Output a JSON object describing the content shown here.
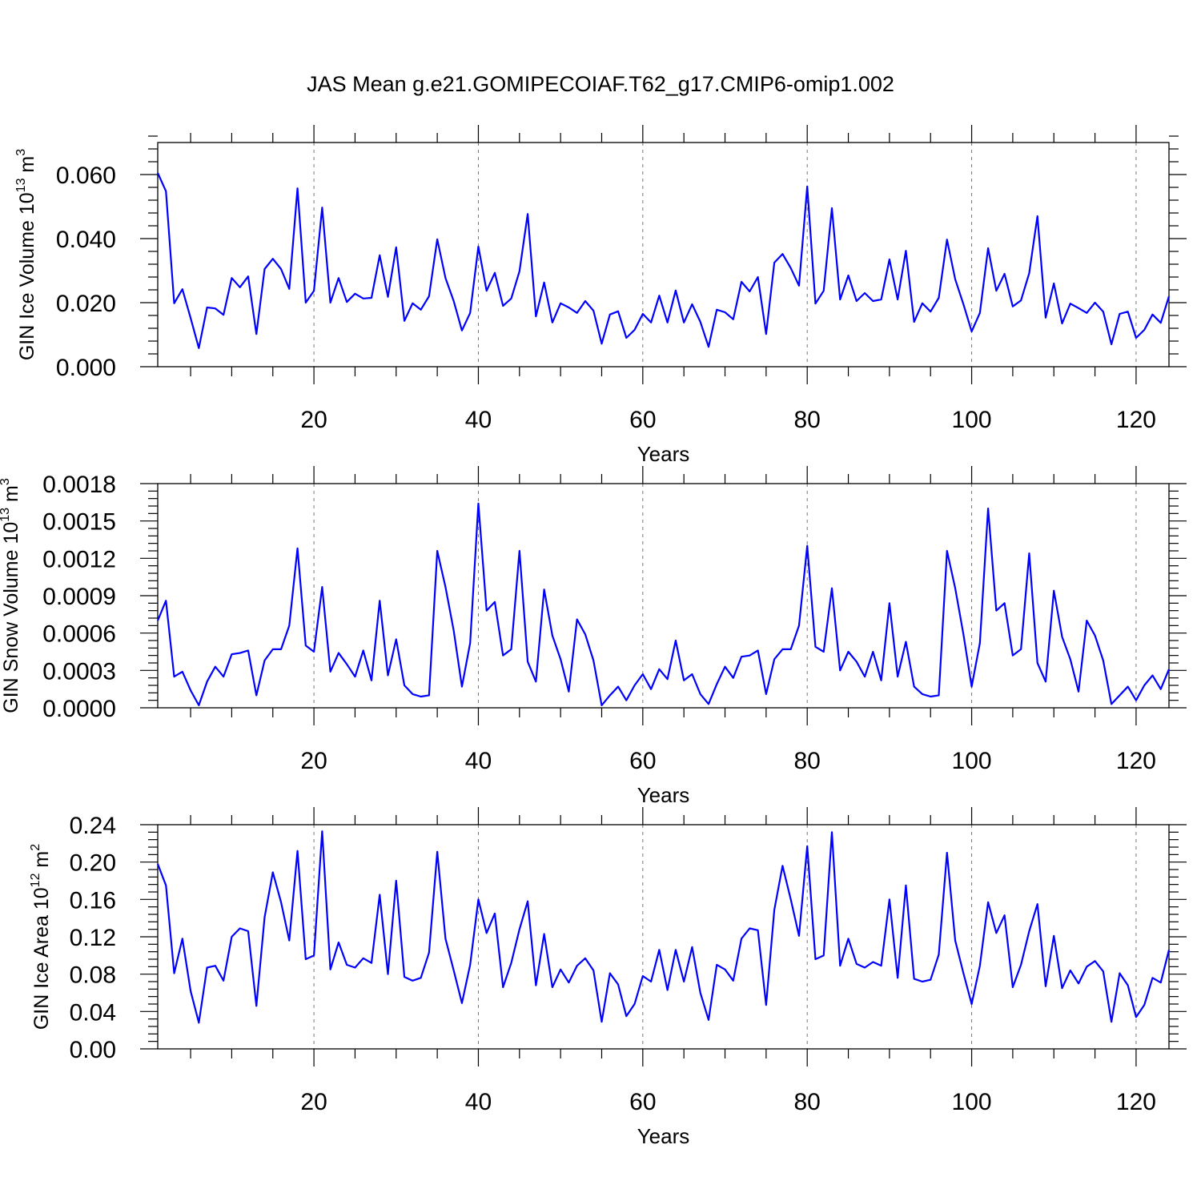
{
  "title": "JAS Mean g.e21.GOMIPECOIAF.T62_g17.CMIP6-omip1.002",
  "chart_data": [
    {
      "type": "line",
      "id": "ice-volume",
      "ylabel": {
        "main": "GIN Ice Volume 10",
        "sup": "13",
        "unit": " m",
        "unit_sup": "3"
      },
      "xlabel": "Years",
      "xlim": [
        1,
        124
      ],
      "ylim": [
        0,
        0.07
      ],
      "xticks": [
        20,
        40,
        60,
        80,
        100,
        120
      ],
      "xtick_labels": [
        "20",
        "40",
        "60",
        "80",
        "100",
        "120"
      ],
      "yticks": [
        0,
        0.02,
        0.04,
        0.06
      ],
      "ytick_labels": [
        "0.000",
        "0.020",
        "0.040",
        "0.060"
      ],
      "series_color": "#0000ff",
      "values": [
        0.0605,
        0.0548,
        0.0198,
        0.0242,
        0.0152,
        0.0058,
        0.0185,
        0.0182,
        0.0162,
        0.0277,
        0.0248,
        0.0282,
        0.0102,
        0.0305,
        0.0337,
        0.0305,
        0.0243,
        0.0557,
        0.02,
        0.0237,
        0.0497,
        0.02,
        0.0277,
        0.0202,
        0.0228,
        0.0213,
        0.0215,
        0.0348,
        0.0218,
        0.0373,
        0.0143,
        0.0198,
        0.0178,
        0.022,
        0.0398,
        0.0277,
        0.0205,
        0.0113,
        0.0168,
        0.0375,
        0.0237,
        0.0293,
        0.019,
        0.0213,
        0.0298,
        0.0477,
        0.0157,
        0.0263,
        0.0138,
        0.0198,
        0.0185,
        0.0168,
        0.0205,
        0.0175,
        0.0072,
        0.0163,
        0.0173,
        0.009,
        0.0115,
        0.0165,
        0.0138,
        0.0222,
        0.0138,
        0.0238,
        0.0138,
        0.0195,
        0.014,
        0.0062,
        0.0178,
        0.017,
        0.0148,
        0.0265,
        0.0235,
        0.028,
        0.0102,
        0.0325,
        0.0352,
        0.0308,
        0.0253,
        0.0563,
        0.0197,
        0.0237,
        0.0495,
        0.021,
        0.0285,
        0.0205,
        0.023,
        0.0205,
        0.021,
        0.0335,
        0.021,
        0.0362,
        0.014,
        0.0198,
        0.0172,
        0.0215,
        0.0397,
        0.0273,
        0.0195,
        0.011,
        0.0168,
        0.037,
        0.0237,
        0.029,
        0.0188,
        0.0207,
        0.0292,
        0.047,
        0.0153,
        0.026,
        0.0135,
        0.0197,
        0.0183,
        0.0168,
        0.02,
        0.0172,
        0.007,
        0.0165,
        0.0172,
        0.009,
        0.0115,
        0.0163,
        0.0137,
        0.022
      ]
    },
    {
      "type": "line",
      "id": "snow-volume",
      "ylabel": {
        "main": "GIN Snow Volume 10",
        "sup": "13",
        "unit": " m",
        "unit_sup": "3"
      },
      "xlabel": "Years",
      "xlim": [
        1,
        124
      ],
      "ylim": [
        0,
        0.0018
      ],
      "xticks": [
        20,
        40,
        60,
        80,
        100,
        120
      ],
      "xtick_labels": [
        "20",
        "40",
        "60",
        "80",
        "100",
        "120"
      ],
      "yticks": [
        0,
        0.0003,
        0.0006,
        0.0009,
        0.0012,
        0.0015,
        0.0018
      ],
      "ytick_labels": [
        "0.0000",
        "0.0003",
        "0.0006",
        "0.0009",
        "0.0012",
        "0.0015",
        "0.0018"
      ],
      "series_color": "#0000ff",
      "values": [
        0.0007,
        0.00086,
        0.00025,
        0.00029,
        0.00014,
        2e-05,
        0.00021,
        0.00033,
        0.00025,
        0.00043,
        0.00044,
        0.00046,
        0.0001,
        0.00038,
        0.00047,
        0.00047,
        0.00066,
        0.00128,
        0.0005,
        0.00045,
        0.00097,
        0.00029,
        0.00044,
        0.00035,
        0.00025,
        0.00046,
        0.00022,
        0.00086,
        0.00026,
        0.00055,
        0.00018,
        0.00011,
        9e-05,
        0.0001,
        0.00126,
        0.00097,
        0.00062,
        0.00017,
        0.00052,
        0.00164,
        0.00078,
        0.00085,
        0.00042,
        0.00047,
        0.00126,
        0.00037,
        0.00021,
        0.00095,
        0.00058,
        0.00039,
        0.00013,
        0.00071,
        0.00059,
        0.00038,
        2e-05,
        0.0001,
        0.00017,
        6e-05,
        0.00018,
        0.00027,
        0.00015,
        0.00031,
        0.00023,
        0.00054,
        0.00022,
        0.00027,
        0.00011,
        3e-05,
        0.00019,
        0.00033,
        0.00024,
        0.00041,
        0.00042,
        0.00046,
        0.00011,
        0.00039,
        0.00047,
        0.00047,
        0.00066,
        0.0013,
        0.00049,
        0.00045,
        0.00096,
        0.0003,
        0.00045,
        0.00037,
        0.00025,
        0.00045,
        0.00022,
        0.00084,
        0.00025,
        0.00053,
        0.00017,
        0.00011,
        9e-05,
        0.0001,
        0.00126,
        0.00096,
        0.00059,
        0.00017,
        0.00052,
        0.0016,
        0.00078,
        0.00084,
        0.00042,
        0.00047,
        0.00124,
        0.00036,
        0.00021,
        0.00094,
        0.00057,
        0.00039,
        0.00013,
        0.0007,
        0.00058,
        0.00038,
        3e-05,
        0.0001,
        0.00017,
        6e-05,
        0.00018,
        0.00026,
        0.00015,
        0.00031
      ]
    },
    {
      "type": "line",
      "id": "ice-area",
      "ylabel": {
        "main": "GIN Ice Area 10",
        "sup": "12",
        "unit": " m",
        "unit_sup": "2"
      },
      "xlabel": "Years",
      "xlim": [
        1,
        124
      ],
      "ylim": [
        0,
        0.24
      ],
      "xticks": [
        20,
        40,
        60,
        80,
        100,
        120
      ],
      "xtick_labels": [
        "20",
        "40",
        "60",
        "80",
        "100",
        "120"
      ],
      "yticks": [
        0,
        0.04,
        0.08,
        0.12,
        0.16,
        0.2,
        0.24
      ],
      "ytick_labels": [
        "0.00",
        "0.04",
        "0.08",
        "0.12",
        "0.16",
        "0.20",
        "0.24"
      ],
      "series_color": "#0000ff",
      "values": [
        0.198,
        0.175,
        0.081,
        0.118,
        0.062,
        0.028,
        0.087,
        0.089,
        0.073,
        0.12,
        0.129,
        0.126,
        0.046,
        0.141,
        0.189,
        0.157,
        0.116,
        0.212,
        0.096,
        0.1,
        0.233,
        0.085,
        0.114,
        0.09,
        0.087,
        0.097,
        0.092,
        0.165,
        0.08,
        0.18,
        0.077,
        0.073,
        0.076,
        0.103,
        0.211,
        0.118,
        0.084,
        0.049,
        0.09,
        0.16,
        0.124,
        0.145,
        0.066,
        0.092,
        0.128,
        0.158,
        0.068,
        0.123,
        0.066,
        0.085,
        0.071,
        0.089,
        0.097,
        0.084,
        0.029,
        0.081,
        0.069,
        0.035,
        0.048,
        0.078,
        0.072,
        0.106,
        0.063,
        0.106,
        0.072,
        0.109,
        0.06,
        0.031,
        0.09,
        0.085,
        0.073,
        0.118,
        0.129,
        0.127,
        0.047,
        0.149,
        0.196,
        0.16,
        0.121,
        0.217,
        0.096,
        0.1,
        0.232,
        0.089,
        0.118,
        0.091,
        0.087,
        0.093,
        0.089,
        0.16,
        0.076,
        0.175,
        0.075,
        0.072,
        0.074,
        0.101,
        0.21,
        0.116,
        0.081,
        0.048,
        0.089,
        0.157,
        0.124,
        0.143,
        0.066,
        0.09,
        0.126,
        0.155,
        0.067,
        0.121,
        0.065,
        0.084,
        0.07,
        0.088,
        0.094,
        0.083,
        0.029,
        0.081,
        0.068,
        0.034,
        0.047,
        0.076,
        0.071,
        0.106
      ]
    }
  ]
}
